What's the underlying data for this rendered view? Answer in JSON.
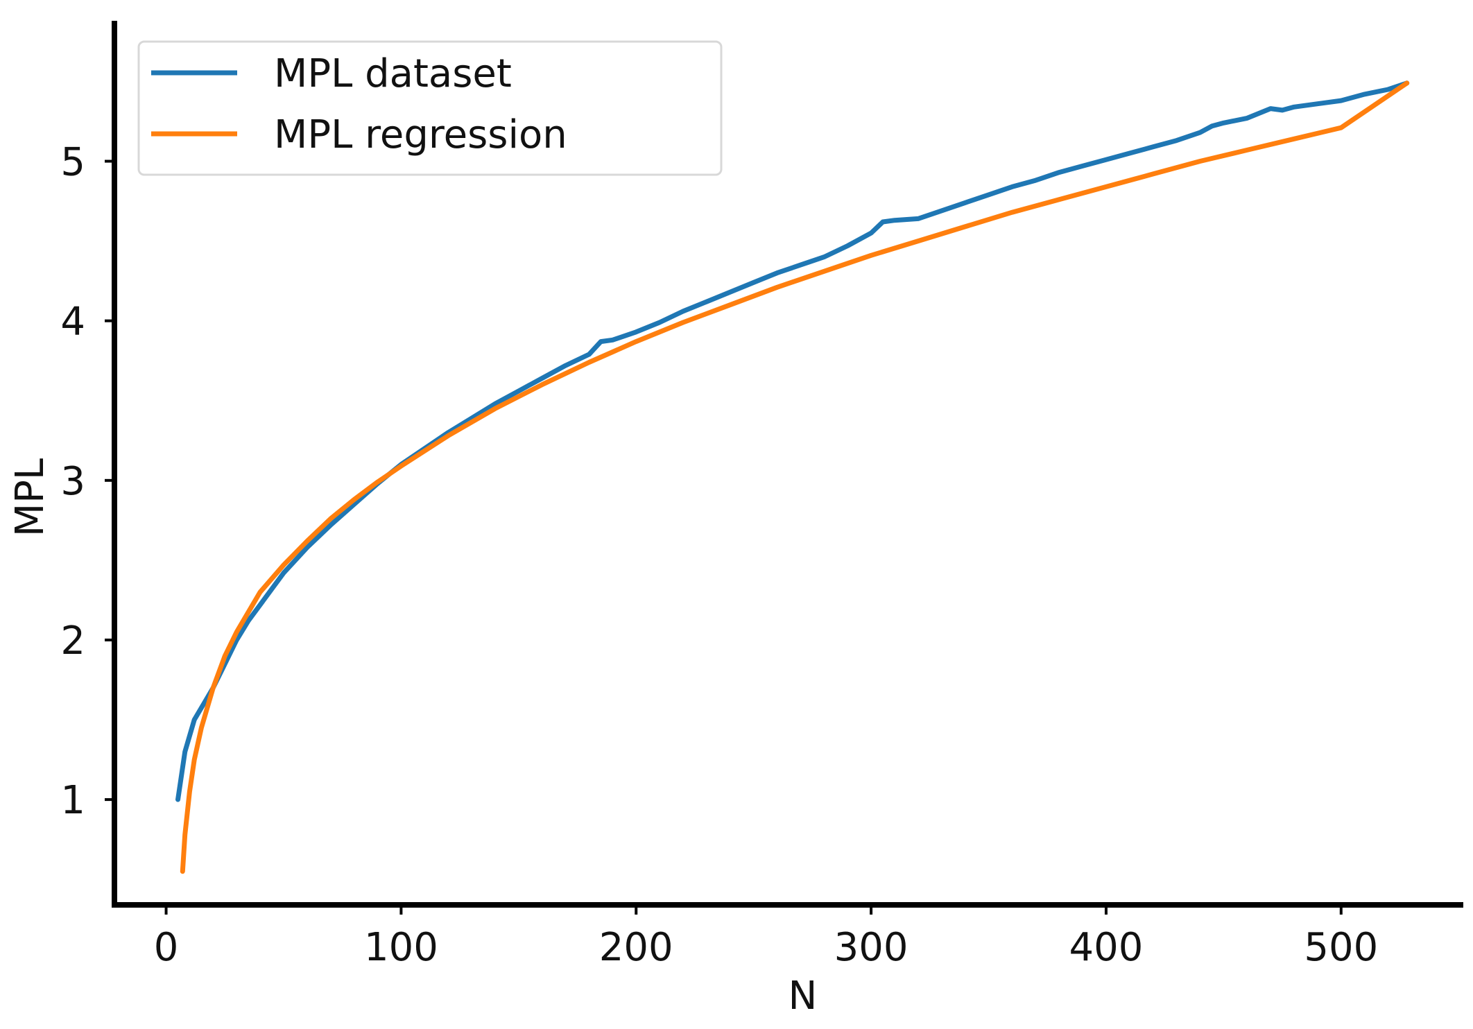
{
  "chart_data": {
    "type": "line",
    "title": "",
    "xlabel": "N",
    "ylabel": "MPL",
    "xlim": [
      -22,
      552
    ],
    "ylim": [
      0.34,
      5.88
    ],
    "xticks": [
      0,
      100,
      200,
      300,
      400,
      500
    ],
    "yticks": [
      1,
      2,
      3,
      4,
      5
    ],
    "xtick_labels": [
      "0",
      "100",
      "200",
      "300",
      "400",
      "500"
    ],
    "ytick_labels": [
      "1",
      "2",
      "3",
      "4",
      "5"
    ],
    "grid": false,
    "legend_position": "top-left",
    "series": [
      {
        "name": "MPL dataset",
        "color": "#1f77b4",
        "x": [
          5,
          8,
          12,
          16,
          20,
          25,
          30,
          35,
          40,
          45,
          50,
          60,
          70,
          80,
          90,
          100,
          110,
          120,
          130,
          140,
          150,
          160,
          170,
          180,
          185,
          190,
          200,
          210,
          220,
          230,
          240,
          250,
          260,
          270,
          280,
          290,
          300,
          305,
          310,
          320,
          330,
          340,
          350,
          360,
          370,
          380,
          390,
          400,
          410,
          420,
          430,
          440,
          445,
          450,
          460,
          470,
          475,
          480,
          490,
          500,
          510,
          520,
          528
        ],
        "y": [
          1.0,
          1.3,
          1.5,
          1.6,
          1.7,
          1.85,
          2.0,
          2.12,
          2.22,
          2.32,
          2.42,
          2.58,
          2.72,
          2.85,
          2.98,
          3.1,
          3.2,
          3.3,
          3.39,
          3.48,
          3.56,
          3.64,
          3.72,
          3.79,
          3.87,
          3.88,
          3.93,
          3.99,
          4.06,
          4.12,
          4.18,
          4.24,
          4.3,
          4.35,
          4.4,
          4.47,
          4.55,
          4.62,
          4.63,
          4.64,
          4.69,
          4.74,
          4.79,
          4.84,
          4.88,
          4.93,
          4.97,
          5.01,
          5.05,
          5.09,
          5.13,
          5.18,
          5.22,
          5.24,
          5.27,
          5.33,
          5.32,
          5.34,
          5.36,
          5.38,
          5.42,
          5.45,
          5.49
        ]
      },
      {
        "name": "MPL regression",
        "color": "#ff7f0e",
        "x": [
          7,
          8,
          10,
          12,
          15,
          20,
          25,
          30,
          40,
          50,
          60,
          70,
          80,
          90,
          100,
          120,
          140,
          160,
          180,
          200,
          220,
          240,
          260,
          280,
          300,
          320,
          340,
          360,
          380,
          400,
          420,
          440,
          460,
          480,
          500,
          528
        ],
        "y": [
          0.55,
          0.78,
          1.05,
          1.25,
          1.45,
          1.7,
          1.9,
          2.05,
          2.3,
          2.47,
          2.62,
          2.76,
          2.88,
          2.99,
          3.09,
          3.28,
          3.45,
          3.6,
          3.74,
          3.87,
          3.99,
          4.1,
          4.21,
          4.31,
          4.41,
          4.5,
          4.59,
          4.68,
          4.76,
          4.84,
          4.92,
          5.0,
          5.07,
          5.14,
          5.21,
          5.49
        ]
      }
    ]
  }
}
